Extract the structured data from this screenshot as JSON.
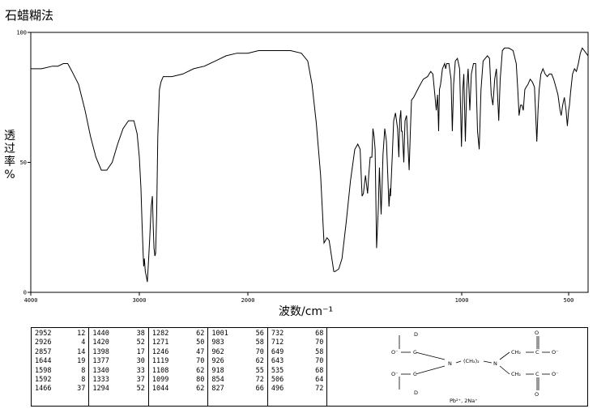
{
  "title": "石蜡糊法",
  "chart_data": {
    "type": "line",
    "ylabel": "透过率 %",
    "xlabel": "波数/cm⁻¹",
    "xlim": [
      4000,
      400
    ],
    "ylim": [
      0,
      100
    ],
    "x_ticks": [
      4000,
      3000,
      2000,
      1000,
      500
    ],
    "y_ticks": [
      0,
      50,
      100
    ],
    "series": [
      {
        "points": [
          [
            4000,
            86
          ],
          [
            3900,
            86
          ],
          [
            3800,
            87
          ],
          [
            3750,
            87
          ],
          [
            3700,
            88
          ],
          [
            3660,
            88
          ],
          [
            3620,
            85
          ],
          [
            3560,
            80
          ],
          [
            3500,
            70
          ],
          [
            3450,
            60
          ],
          [
            3400,
            52
          ],
          [
            3350,
            47
          ],
          [
            3300,
            47
          ],
          [
            3250,
            50
          ],
          [
            3200,
            57
          ],
          [
            3150,
            63
          ],
          [
            3100,
            66
          ],
          [
            3050,
            66
          ],
          [
            3020,
            61
          ],
          [
            3000,
            52
          ],
          [
            2985,
            40
          ],
          [
            2975,
            27
          ],
          [
            2965,
            15
          ],
          [
            2960,
            10
          ],
          [
            2954,
            13
          ],
          [
            2945,
            8
          ],
          [
            2935,
            6
          ],
          [
            2926,
            4
          ],
          [
            2918,
            10
          ],
          [
            2905,
            20
          ],
          [
            2890,
            33
          ],
          [
            2880,
            37
          ],
          [
            2872,
            25
          ],
          [
            2865,
            17
          ],
          [
            2857,
            14
          ],
          [
            2850,
            15
          ],
          [
            2840,
            30
          ],
          [
            2830,
            60
          ],
          [
            2815,
            78
          ],
          [
            2800,
            81
          ],
          [
            2780,
            83
          ],
          [
            2700,
            83
          ],
          [
            2600,
            84
          ],
          [
            2500,
            86
          ],
          [
            2400,
            87
          ],
          [
            2300,
            89
          ],
          [
            2200,
            91
          ],
          [
            2100,
            92
          ],
          [
            2000,
            92
          ],
          [
            1950,
            93
          ],
          [
            1900,
            93
          ],
          [
            1800,
            93
          ],
          [
            1750,
            92
          ],
          [
            1720,
            89
          ],
          [
            1700,
            80
          ],
          [
            1680,
            65
          ],
          [
            1660,
            45
          ],
          [
            1644,
            19
          ],
          [
            1630,
            21
          ],
          [
            1620,
            20
          ],
          [
            1598,
            8
          ],
          [
            1592,
            8
          ],
          [
            1575,
            9
          ],
          [
            1560,
            13
          ],
          [
            1540,
            27
          ],
          [
            1520,
            43
          ],
          [
            1500,
            55
          ],
          [
            1486,
            57
          ],
          [
            1475,
            55
          ],
          [
            1466,
            37
          ],
          [
            1460,
            38
          ],
          [
            1450,
            45
          ],
          [
            1440,
            38
          ],
          [
            1435,
            45
          ],
          [
            1428,
            52
          ],
          [
            1420,
            52
          ],
          [
            1415,
            63
          ],
          [
            1410,
            60
          ],
          [
            1405,
            55
          ],
          [
            1398,
            17
          ],
          [
            1390,
            32
          ],
          [
            1385,
            48
          ],
          [
            1377,
            30
          ],
          [
            1372,
            42
          ],
          [
            1368,
            53
          ],
          [
            1360,
            63
          ],
          [
            1352,
            58
          ],
          [
            1340,
            33
          ],
          [
            1335,
            40
          ],
          [
            1333,
            37
          ],
          [
            1325,
            52
          ],
          [
            1318,
            66
          ],
          [
            1310,
            69
          ],
          [
            1300,
            63
          ],
          [
            1294,
            52
          ],
          [
            1290,
            66
          ],
          [
            1285,
            70
          ],
          [
            1282,
            62
          ],
          [
            1278,
            62
          ],
          [
            1271,
            50
          ],
          [
            1265,
            66
          ],
          [
            1258,
            68
          ],
          [
            1246,
            47
          ],
          [
            1240,
            62
          ],
          [
            1235,
            74
          ],
          [
            1225,
            75
          ],
          [
            1200,
            79
          ],
          [
            1180,
            82
          ],
          [
            1160,
            83
          ],
          [
            1145,
            85
          ],
          [
            1135,
            84
          ],
          [
            1119,
            70
          ],
          [
            1113,
            76
          ],
          [
            1108,
            62
          ],
          [
            1104,
            78
          ],
          [
            1099,
            80
          ],
          [
            1090,
            86
          ],
          [
            1080,
            88
          ],
          [
            1075,
            86
          ],
          [
            1070,
            88
          ],
          [
            1060,
            88
          ],
          [
            1050,
            82
          ],
          [
            1044,
            62
          ],
          [
            1038,
            80
          ],
          [
            1030,
            89
          ],
          [
            1020,
            90
          ],
          [
            1010,
            86
          ],
          [
            1001,
            56
          ],
          [
            995,
            78
          ],
          [
            990,
            84
          ],
          [
            983,
            58
          ],
          [
            977,
            78
          ],
          [
            970,
            86
          ],
          [
            962,
            70
          ],
          [
            955,
            84
          ],
          [
            945,
            88
          ],
          [
            935,
            88
          ],
          [
            926,
            62
          ],
          [
            918,
            55
          ],
          [
            910,
            78
          ],
          [
            900,
            89
          ],
          [
            880,
            91
          ],
          [
            870,
            90
          ],
          [
            862,
            76
          ],
          [
            854,
            72
          ],
          [
            846,
            82
          ],
          [
            838,
            86
          ],
          [
            827,
            66
          ],
          [
            820,
            82
          ],
          [
            810,
            93
          ],
          [
            800,
            94
          ],
          [
            780,
            94
          ],
          [
            760,
            93
          ],
          [
            745,
            88
          ],
          [
            738,
            78
          ],
          [
            732,
            68
          ],
          [
            725,
            72
          ],
          [
            718,
            72
          ],
          [
            712,
            70
          ],
          [
            705,
            78
          ],
          [
            698,
            79
          ],
          [
            690,
            80
          ],
          [
            680,
            82
          ],
          [
            670,
            81
          ],
          [
            660,
            79
          ],
          [
            655,
            70
          ],
          [
            649,
            58
          ],
          [
            643,
            70
          ],
          [
            638,
            78
          ],
          [
            630,
            84
          ],
          [
            620,
            86
          ],
          [
            610,
            84
          ],
          [
            600,
            83
          ],
          [
            590,
            84
          ],
          [
            580,
            84
          ],
          [
            570,
            82
          ],
          [
            560,
            79
          ],
          [
            550,
            76
          ],
          [
            540,
            70
          ],
          [
            535,
            68
          ],
          [
            528,
            72
          ],
          [
            520,
            75
          ],
          [
            512,
            70
          ],
          [
            506,
            64
          ],
          [
            500,
            70
          ],
          [
            496,
            72
          ],
          [
            490,
            77
          ],
          [
            480,
            84
          ],
          [
            470,
            86
          ],
          [
            460,
            85
          ],
          [
            450,
            88
          ],
          [
            440,
            92
          ],
          [
            430,
            94
          ],
          [
            420,
            93
          ],
          [
            410,
            92
          ],
          [
            400,
            91
          ]
        ]
      }
    ]
  },
  "peak_table": [
    [
      [
        "2952",
        "12"
      ],
      [
        "2926",
        "4"
      ],
      [
        "2857",
        "14"
      ],
      [
        "1644",
        "19"
      ],
      [
        "1598",
        "8"
      ],
      [
        "1592",
        "8"
      ],
      [
        "1466",
        "37"
      ]
    ],
    [
      [
        "1440",
        "38"
      ],
      [
        "1420",
        "52"
      ],
      [
        "1398",
        "17"
      ],
      [
        "1377",
        "30"
      ],
      [
        "1340",
        "33"
      ],
      [
        "1333",
        "37"
      ],
      [
        "1294",
        "52"
      ]
    ],
    [
      [
        "1282",
        "62"
      ],
      [
        "1271",
        "50"
      ],
      [
        "1246",
        "47"
      ],
      [
        "1119",
        "70"
      ],
      [
        "1108",
        "62"
      ],
      [
        "1099",
        "80"
      ],
      [
        "1044",
        "62"
      ]
    ],
    [
      [
        "1001",
        "56"
      ],
      [
        "983",
        "58"
      ],
      [
        "962",
        "70"
      ],
      [
        "926",
        "62"
      ],
      [
        "918",
        "55"
      ],
      [
        "854",
        "72"
      ],
      [
        "827",
        "66"
      ]
    ],
    [
      [
        "732",
        "68"
      ],
      [
        "712",
        "70"
      ],
      [
        "649",
        "58"
      ],
      [
        "643",
        "70"
      ],
      [
        "535",
        "68"
      ],
      [
        "506",
        "64"
      ],
      [
        "496",
        "72"
      ]
    ]
  ],
  "structure": {
    "o_minus": "O⁻",
    "c": "C",
    "d": "D",
    "n": "N",
    "ch2": "CH₂",
    "ch2_2": "(CH₂)₂",
    "o": "O",
    "ions": "Pb²⁺, 2Na⁺"
  }
}
